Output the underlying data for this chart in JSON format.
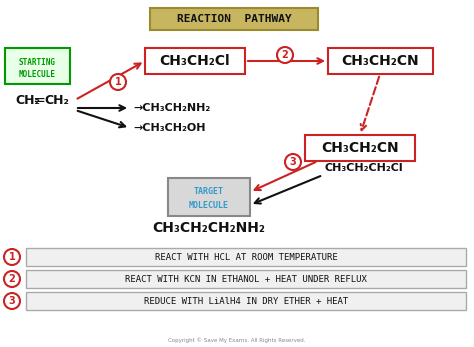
{
  "title": "REACTION  PATHWAY",
  "title_bg": "#c8b560",
  "title_border": "#9a8a30",
  "bg_color": "#ffffff",
  "red": "#cc2222",
  "green": "#009900",
  "blue": "#3399cc",
  "black": "#111111",
  "note1": "REACT WITH HCL AT ROOM TEMPERATURE",
  "note2": "REACT WITH KCN IN ETHANOL + HEAT UNDER REFLUX",
  "note3": "REDUCE WITH LiAlH4 IN DRY ETHER + HEAT",
  "copyright": "Copyright © Save My Exams. All Rights Reserved."
}
